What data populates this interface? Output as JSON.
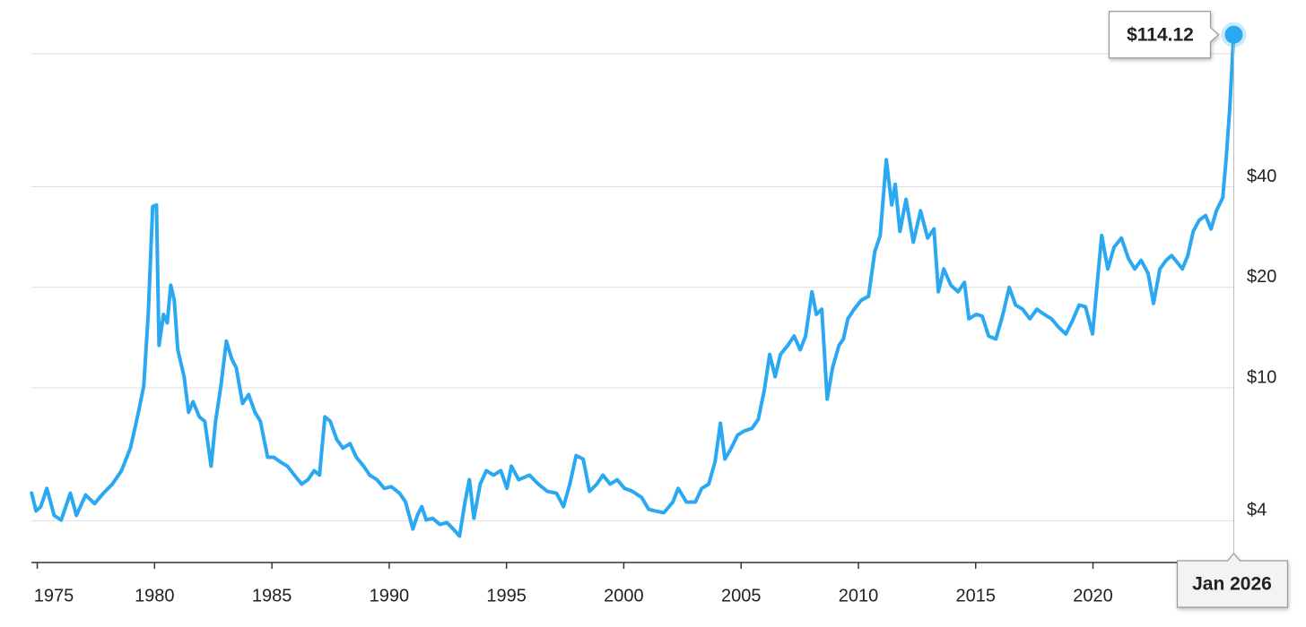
{
  "chart_data": {
    "type": "line",
    "log_scale": true,
    "grid": true,
    "color": "#2aa8f2",
    "xlim": [
      1974.75,
      2026.02
    ],
    "xticks": [
      1975,
      1980,
      1985,
      1990,
      1995,
      2000,
      2005,
      2010,
      2015,
      2020
    ],
    "ylim": [
      3,
      145
    ],
    "yticks": [
      {
        "value": 4,
        "label": "$4"
      },
      {
        "value": 10,
        "label": "$10"
      },
      {
        "value": 20,
        "label": "$20"
      },
      {
        "value": 40,
        "label": "$40"
      },
      {
        "value": 100,
        "label": null
      }
    ],
    "x": [
      1974.76,
      1974.95,
      1975.15,
      1975.41,
      1975.72,
      1976.02,
      1976.41,
      1976.67,
      1977.06,
      1977.44,
      1977.82,
      1978.2,
      1978.59,
      1978.97,
      1979.16,
      1979.35,
      1979.54,
      1979.73,
      1979.92,
      1980.08,
      1980.19,
      1980.38,
      1980.54,
      1980.69,
      1980.84,
      1980.99,
      1981.26,
      1981.45,
      1981.64,
      1981.91,
      1982.14,
      1982.41,
      1982.6,
      1982.83,
      1983.06,
      1983.29,
      1983.48,
      1983.75,
      1984.01,
      1984.28,
      1984.51,
      1984.82,
      1985.08,
      1985.35,
      1985.66,
      1985.96,
      1986.27,
      1986.54,
      1986.8,
      1987.03,
      1987.26,
      1987.49,
      1987.76,
      1988.03,
      1988.33,
      1988.6,
      1988.91,
      1989.17,
      1989.48,
      1989.79,
      1990.09,
      1990.44,
      1990.7,
      1991.01,
      1991.2,
      1991.39,
      1991.58,
      1991.85,
      1992.16,
      1992.46,
      1992.73,
      1993.0,
      1993.23,
      1993.42,
      1993.61,
      1993.88,
      1994.14,
      1994.45,
      1994.76,
      1995.02,
      1995.21,
      1995.52,
      1995.98,
      1996.36,
      1996.74,
      1997.13,
      1997.43,
      1997.7,
      1997.97,
      1998.27,
      1998.54,
      1998.85,
      1999.11,
      1999.42,
      1999.72,
      2000.03,
      2000.37,
      2000.76,
      2001.06,
      2001.33,
      2001.71,
      2002.09,
      2002.32,
      2002.67,
      2003.05,
      2003.32,
      2003.62,
      2003.89,
      2004.12,
      2004.31,
      2004.58,
      2004.85,
      2005.15,
      2005.46,
      2005.73,
      2005.99,
      2006.22,
      2006.45,
      2006.68,
      2006.99,
      2007.26,
      2007.52,
      2007.75,
      2008.02,
      2008.21,
      2008.44,
      2008.67,
      2008.9,
      2009.17,
      2009.36,
      2009.55,
      2009.82,
      2010.12,
      2010.43,
      2010.7,
      2010.93,
      2011.19,
      2011.42,
      2011.57,
      2011.77,
      2012.03,
      2012.34,
      2012.65,
      2012.95,
      2013.22,
      2013.41,
      2013.64,
      2013.94,
      2014.25,
      2014.52,
      2014.71,
      2015.02,
      2015.28,
      2015.55,
      2015.86,
      2016.16,
      2016.43,
      2016.7,
      2017.0,
      2017.31,
      2017.61,
      2017.92,
      2018.23,
      2018.53,
      2018.84,
      2019.11,
      2019.41,
      2019.68,
      2019.98,
      2020.37,
      2020.63,
      2020.9,
      2021.21,
      2021.51,
      2021.78,
      2022.05,
      2022.35,
      2022.58,
      2022.85,
      2023.12,
      2023.35,
      2023.58,
      2023.81,
      2024.04,
      2024.27,
      2024.53,
      2024.8,
      2025.03,
      2025.26,
      2025.53,
      2025.68,
      2025.83,
      2025.95,
      2026.0
    ],
    "values": [
      4.84,
      4.28,
      4.41,
      5.0,
      4.15,
      4.02,
      4.84,
      4.15,
      4.78,
      4.5,
      4.84,
      5.15,
      5.65,
      6.6,
      7.56,
      8.7,
      10.16,
      16.6,
      34.9,
      35.3,
      13.4,
      16.6,
      15.65,
      20.3,
      18.3,
      13.0,
      10.8,
      8.45,
      9.09,
      8.19,
      7.94,
      5.83,
      7.94,
      10.16,
      13.8,
      12.2,
      11.5,
      8.98,
      9.55,
      8.45,
      7.94,
      6.2,
      6.2,
      6.01,
      5.83,
      5.48,
      5.15,
      5.31,
      5.65,
      5.48,
      8.19,
      7.94,
      7.02,
      6.6,
      6.81,
      6.2,
      5.83,
      5.48,
      5.31,
      5.0,
      5.06,
      4.84,
      4.55,
      3.78,
      4.15,
      4.41,
      4.02,
      4.07,
      3.9,
      3.95,
      3.78,
      3.6,
      4.55,
      5.31,
      4.07,
      5.15,
      5.65,
      5.48,
      5.65,
      5.0,
      5.83,
      5.31,
      5.48,
      5.15,
      4.9,
      4.84,
      4.41,
      5.15,
      6.27,
      6.12,
      4.9,
      5.15,
      5.48,
      5.15,
      5.31,
      5.0,
      4.9,
      4.7,
      4.33,
      4.28,
      4.23,
      4.55,
      5.0,
      4.55,
      4.55,
      5.0,
      5.15,
      6.01,
      7.84,
      6.12,
      6.6,
      7.22,
      7.44,
      7.56,
      8.04,
      9.85,
      12.6,
      10.8,
      12.6,
      13.4,
      14.3,
      13.0,
      14.3,
      19.4,
      16.6,
      17.2,
      9.26,
      11.5,
      13.4,
      14.0,
      16.1,
      17.2,
      18.3,
      18.8,
      25.6,
      28.6,
      48.2,
      35.3,
      40.7,
      29.4,
      36.7,
      27.3,
      33.9,
      28.1,
      29.9,
      19.4,
      22.7,
      20.3,
      19.4,
      20.7,
      16.1,
      16.6,
      16.4,
      14.3,
      14.0,
      16.6,
      20.0,
      17.7,
      17.2,
      16.1,
      17.2,
      16.6,
      16.1,
      15.2,
      14.5,
      15.8,
      17.7,
      17.5,
      14.5,
      28.6,
      22.7,
      26.4,
      28.1,
      24.4,
      22.7,
      24.1,
      22.0,
      17.9,
      22.7,
      24.1,
      24.9,
      23.8,
      22.7,
      24.9,
      29.4,
      31.8,
      32.8,
      29.9,
      33.9,
      37.1,
      49.0,
      68.8,
      99.7,
      114.12
    ],
    "tooltip": {
      "value_label": "$114.12",
      "x_label": "Jan 2026"
    }
  }
}
